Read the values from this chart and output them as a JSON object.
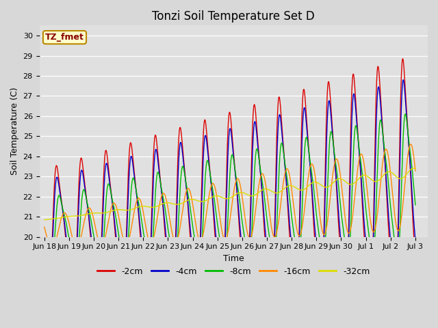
{
  "title": "Tonzi Soil Temperature Set D",
  "xlabel": "Time",
  "ylabel": "Soil Temperature (C)",
  "ylim": [
    20.0,
    30.5
  ],
  "xlim_days": [
    -0.2,
    15.5
  ],
  "yticks": [
    20.0,
    21.0,
    22.0,
    23.0,
    24.0,
    25.0,
    26.0,
    27.0,
    28.0,
    29.0,
    30.0
  ],
  "xtick_labels": [
    "Jun 18",
    "Jun 19",
    "Jun 20",
    "Jun 21",
    "Jun 22",
    "Jun 23",
    "Jun 24",
    "Jun 25",
    "Jun 26",
    "Jun 27",
    "Jun 28",
    "Jun 29",
    "Jun 30",
    "Jul 1",
    "Jul 2",
    "Jul 3"
  ],
  "xtick_positions": [
    0,
    1,
    2,
    3,
    4,
    5,
    6,
    7,
    8,
    9,
    10,
    11,
    12,
    13,
    14,
    15
  ],
  "series_colors": [
    "#dd0000",
    "#0000cc",
    "#00bb00",
    "#ff8800",
    "#dddd00"
  ],
  "series_labels": [
    "-2cm",
    "-4cm",
    "-8cm",
    "-16cm",
    "-32cm"
  ],
  "legend_label": "TZ_fmet",
  "legend_bg": "#ffffcc",
  "legend_border": "#bb8800",
  "legend_text_color": "#880000",
  "fig_bg": "#d8d8d8",
  "plot_bg": "#e0e0e0",
  "title_fontsize": 12,
  "axis_fontsize": 9,
  "tick_fontsize": 8
}
